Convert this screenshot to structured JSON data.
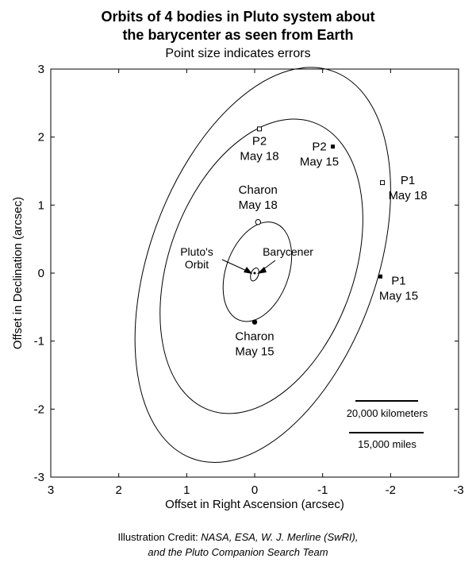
{
  "chart_data": {
    "type": "scatter",
    "title_line1": "Orbits of 4 bodies in Pluto system about",
    "title_line2": "the barycenter as seen from Earth",
    "subtitle": "Point size indicates errors",
    "xlabel": "Offset in Right Ascension (arcsec)",
    "ylabel": "Offset in Declination (arcsec)",
    "xlim": [
      3,
      -3
    ],
    "ylim": [
      -3,
      3
    ],
    "xticks": [
      3,
      2,
      1,
      0,
      -1,
      -2,
      -3
    ],
    "yticks": [
      3,
      2,
      1,
      0,
      -1,
      -2,
      -3
    ],
    "grid": false,
    "orbits": [
      {
        "name": "Pluto's orbit",
        "cx": 0.0,
        "cy": -0.02,
        "rx": 0.055,
        "ry": 0.1,
        "rotate": 20
      },
      {
        "name": "Charon orbit",
        "cx": -0.04,
        "cy": 0.02,
        "rx": 0.46,
        "ry": 0.76,
        "rotate": 20
      },
      {
        "name": "P2 orbit",
        "cx": -0.1,
        "cy": 0.1,
        "rx": 1.36,
        "ry": 2.25,
        "rotate": 20
      },
      {
        "name": "P1 orbit",
        "cx": -0.12,
        "cy": 0.12,
        "rx": 1.67,
        "ry": 3.03,
        "rotate": 20
      }
    ],
    "points": [
      {
        "id": "charon-may18",
        "x": -0.05,
        "y": 0.75,
        "style": "open-circle",
        "label": [
          "Charon",
          "May 18"
        ]
      },
      {
        "id": "charon-may15",
        "x": 0.0,
        "y": -0.72,
        "style": "filled-circle",
        "label": [
          "Charon",
          "May 15"
        ]
      },
      {
        "id": "p2-may18",
        "x": -0.07,
        "y": 2.12,
        "style": "open-square",
        "label": [
          "P2",
          "May 18"
        ]
      },
      {
        "id": "p2-may15",
        "x": -1.15,
        "y": 1.86,
        "style": "filled-square",
        "label": [
          "P2",
          "May 15"
        ]
      },
      {
        "id": "p1-may18",
        "x": -1.88,
        "y": 1.33,
        "style": "open-square",
        "label": [
          "P1",
          "May 18"
        ]
      },
      {
        "id": "p1-may15",
        "x": -1.85,
        "y": -0.05,
        "style": "filled-square",
        "label": [
          "P1",
          "May 15"
        ]
      },
      {
        "id": "barycenter",
        "x": 0.0,
        "y": 0.0,
        "style": "dot",
        "label": []
      }
    ],
    "annotations": {
      "plutos_orbit": [
        "Pluto's",
        "Orbit"
      ],
      "barycenter": "Barycener"
    },
    "scale_bars": {
      "km": "20,000 kilometers",
      "miles": "15,000 miles"
    }
  },
  "credit": {
    "line1_prefix": "Illustration Credit: ",
    "line1_italic": "NASA, ESA, W. J. Merline (SwRI),",
    "line2": "and the Pluto Companion Search Team"
  }
}
